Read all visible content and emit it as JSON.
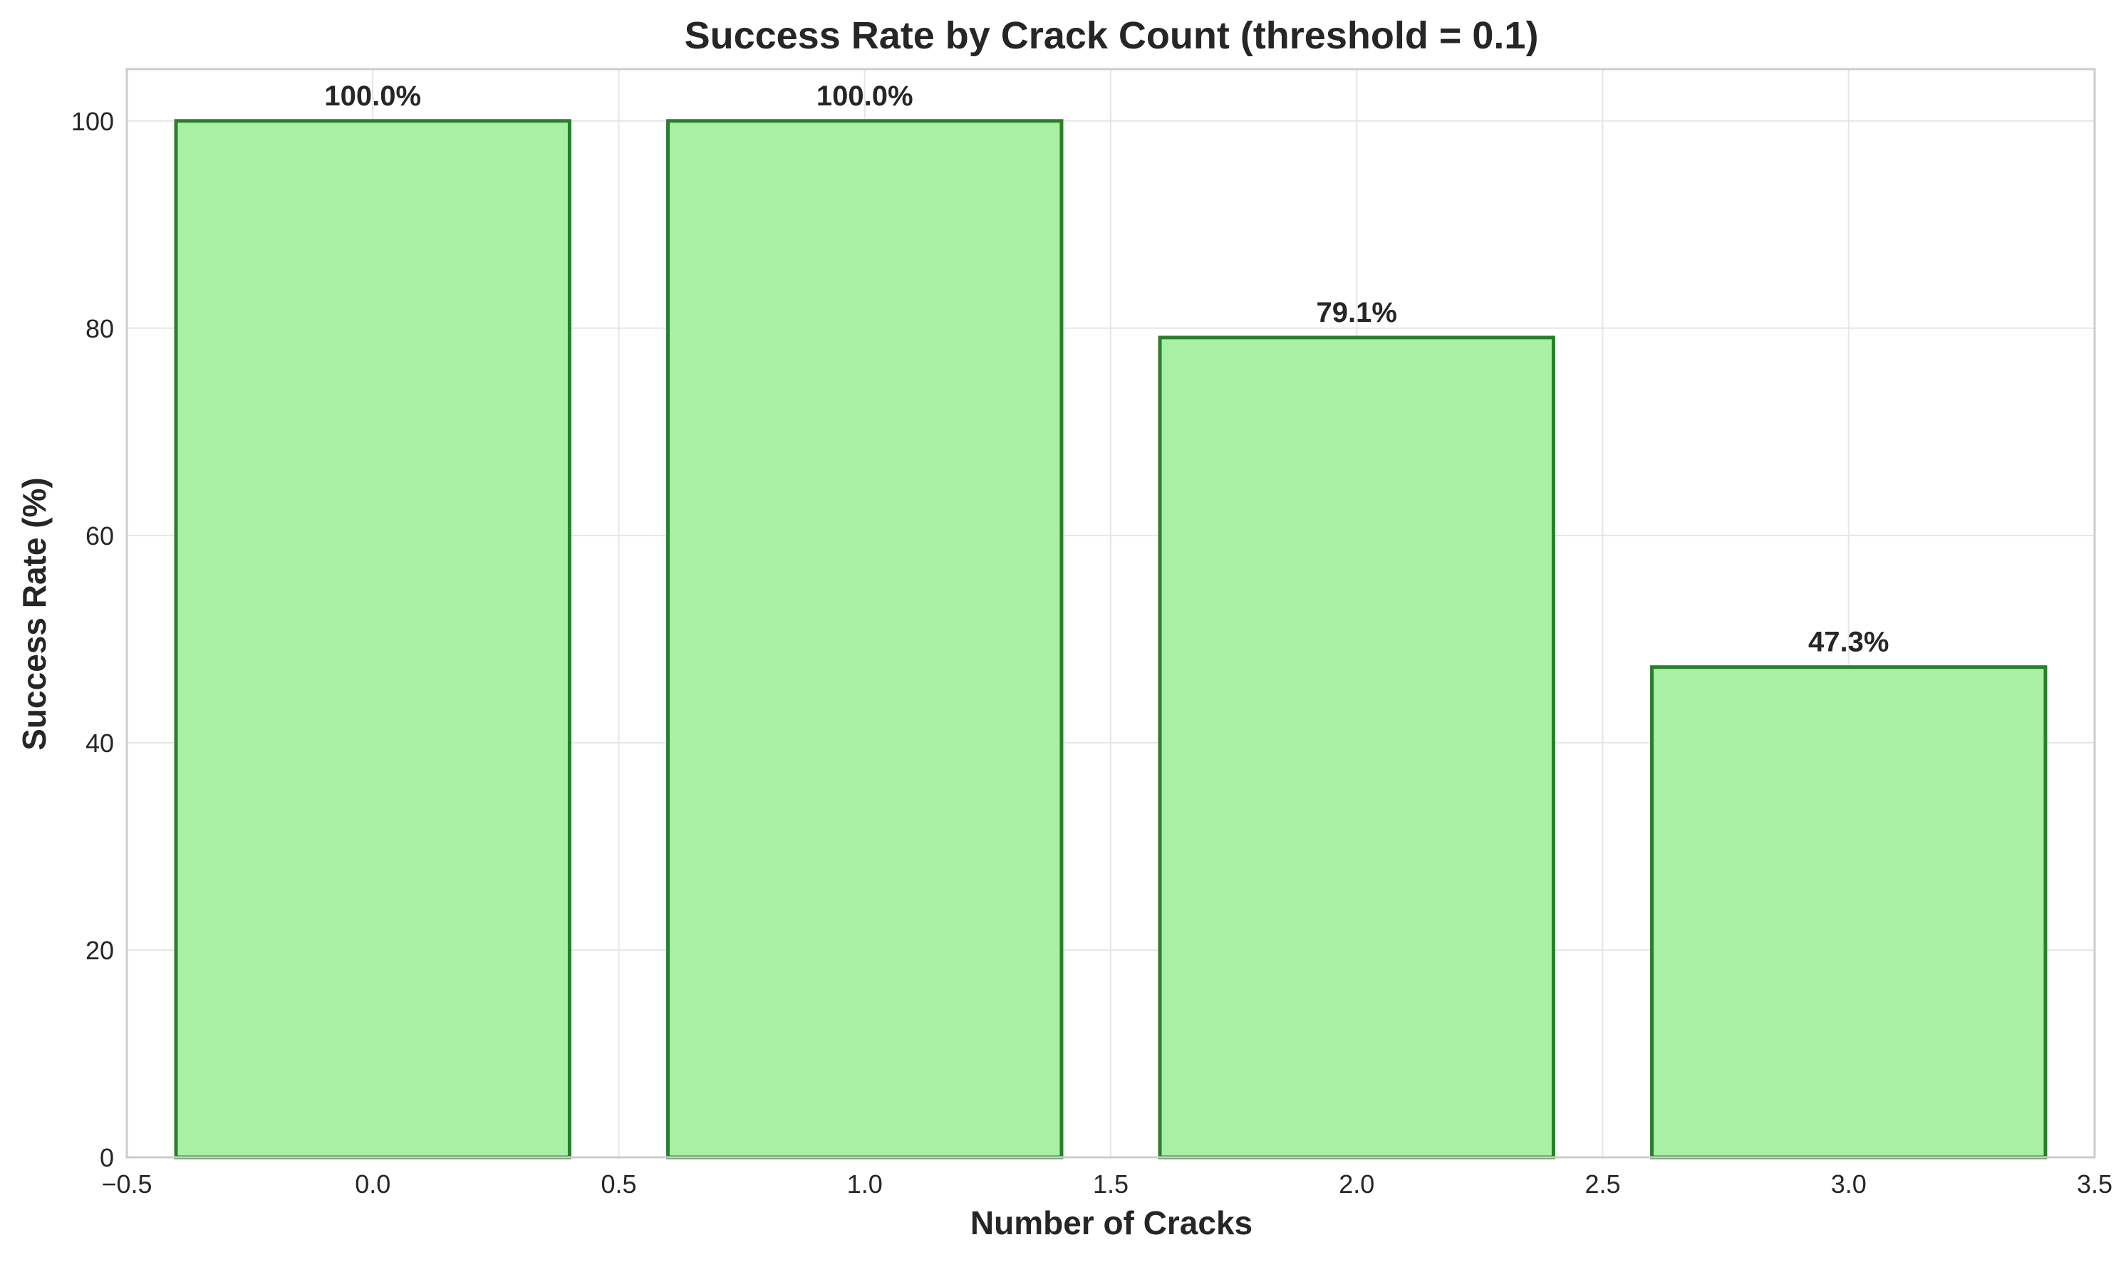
{
  "chart_data": {
    "type": "bar",
    "title": "Success Rate by Crack Count (threshold = 0.1)",
    "xlabel": "Number of Cracks",
    "ylabel": "Success Rate (%)",
    "x": [
      0,
      1,
      2,
      3
    ],
    "values": [
      100.0,
      100.0,
      79.1,
      47.3
    ],
    "data_labels": [
      "100.0%",
      "100.0%",
      "79.1%",
      "47.3%"
    ],
    "bar_width": 0.8,
    "xlim": [
      -0.5,
      3.5
    ],
    "ylim": [
      0,
      105
    ],
    "xticks": [
      -0.5,
      0.0,
      0.5,
      1.0,
      1.5,
      2.0,
      2.5,
      3.0,
      3.5
    ],
    "xtick_labels": [
      "−0.5",
      "0.0",
      "0.5",
      "1.0",
      "1.5",
      "2.0",
      "2.5",
      "3.0",
      "3.5"
    ],
    "yticks": [
      0,
      20,
      40,
      60,
      80,
      100
    ],
    "ytick_labels": [
      "0",
      "20",
      "40",
      "60",
      "80",
      "100"
    ],
    "grid": true,
    "colors": {
      "bar_fill": "#a8f0a4",
      "bar_edge": "#2a7f2a",
      "grid": "#e6e6e6",
      "frame": "#cccccc",
      "text": "#262626"
    }
  }
}
